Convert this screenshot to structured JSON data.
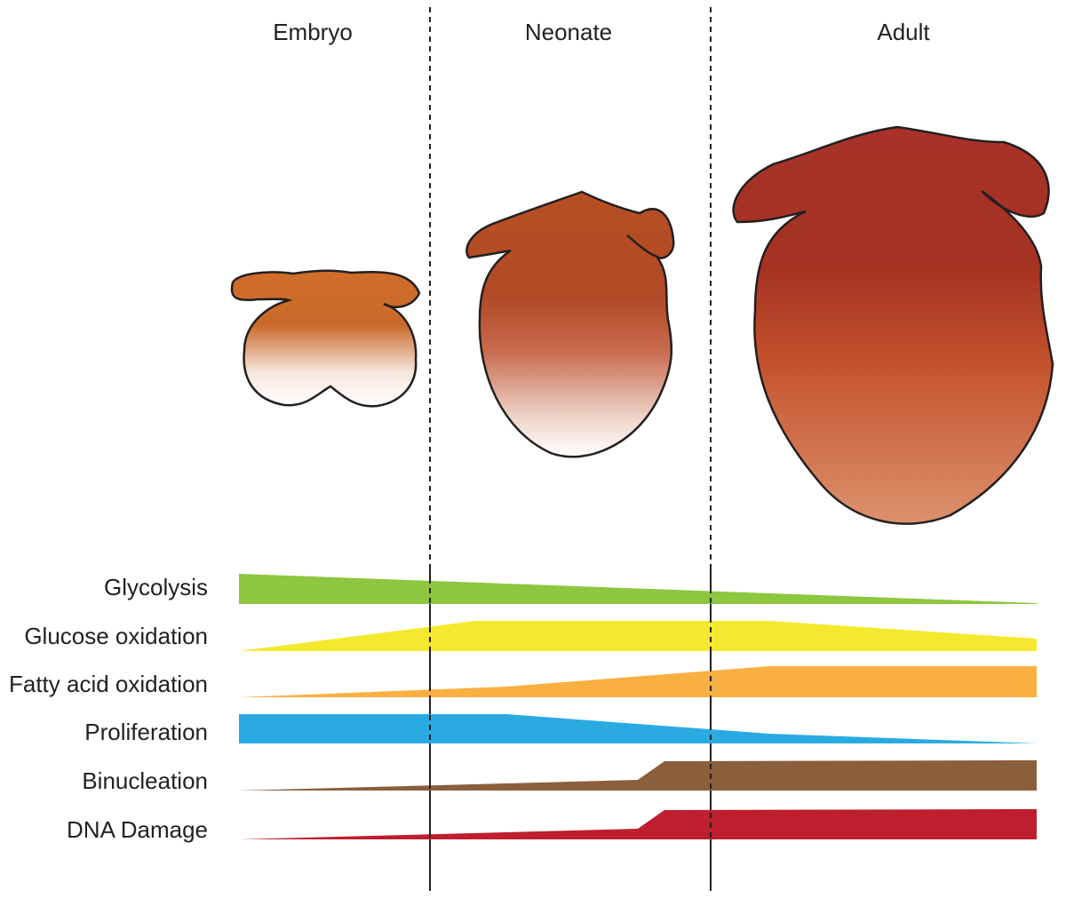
{
  "stages": [
    "Embryo",
    "Neonate",
    "Adult"
  ],
  "rows": [
    "Glycolysis",
    "Glucose oxidation",
    "Fatty acid oxidation",
    "Proliferation",
    "Binucleation",
    "DNA Damage"
  ]
}
